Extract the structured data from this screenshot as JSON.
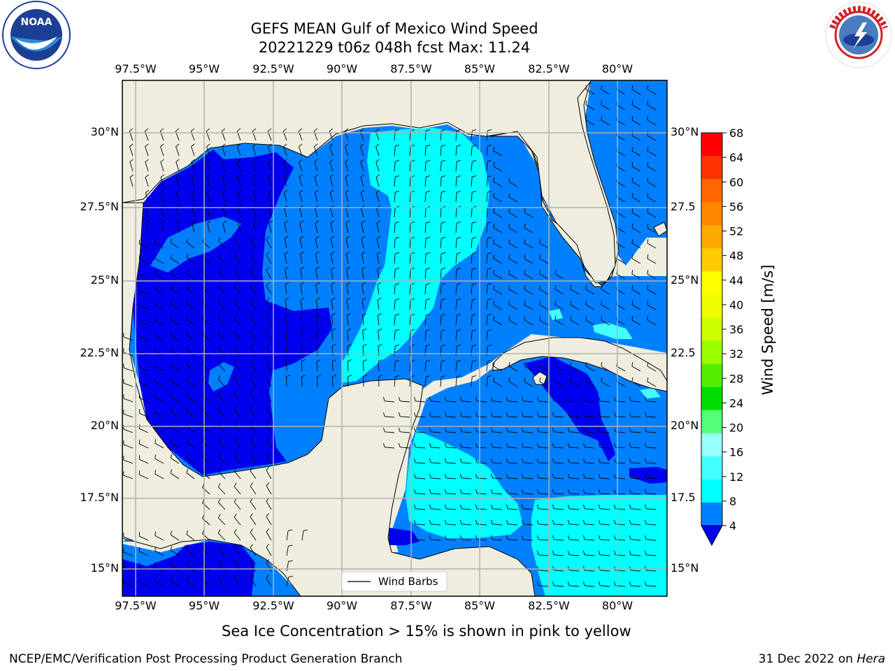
{
  "title_line1": "GEFS MEAN Gulf of Mexico Wind Speed",
  "title_line2": "20221229 t06z 048h fcst   Max: 11.24",
  "lon_labels": [
    "97.5°W",
    "95°W",
    "92.5°W",
    "90°W",
    "87.5°W",
    "85°W",
    "82.5°W",
    "80°W"
  ],
  "lat_labels_left": [
    "30°N",
    "27.5°N",
    "25°N",
    "22.5°N",
    "20°N",
    "17.5°N",
    "15°N"
  ],
  "lat_labels_right": [
    "30°N",
    "27.5",
    "25°N",
    "22.5",
    "20°N",
    "17.5",
    "15°N"
  ],
  "legend_label": "Wind Barbs",
  "colorbar": {
    "label": "Wind Speed [m/s]",
    "ticks": [
      "68",
      "64",
      "60",
      "56",
      "52",
      "48",
      "44",
      "40",
      "36",
      "32",
      "28",
      "24",
      "20",
      "16",
      "12",
      "8",
      "4"
    ],
    "colors": [
      "#ff0000",
      "#ff3300",
      "#ff6600",
      "#ff8800",
      "#ffaa00",
      "#ffcc00",
      "#ffff00",
      "#eeff00",
      "#ccff00",
      "#99ff00",
      "#55ee00",
      "#00dd00",
      "#55ff77",
      "#99ffff",
      "#44ffff",
      "#00ffff",
      "#0080ff"
    ],
    "under_color": "#0000ee"
  },
  "sea_ice_note": "Sea Ice Concentration > 15% is shown in pink to yellow",
  "footer_left": "NCEP/EMC/Verification Post Processing Product Generation Branch",
  "footer_right_date": "31 Dec 2022 on ",
  "footer_right_host": "Hera",
  "logos": {
    "noaa_text": "NOAA",
    "noaa_ring_text": "NATIONAL OCEANIC AND ATMOSPHERIC ADMINISTRATION · U.S. DEPARTMENT OF COMMERCE",
    "nws_ring_text": "NATIONAL WEATHER SERVICE"
  },
  "colors": {
    "land": "#efedde",
    "deep_blue": "#0000ee",
    "mid_blue": "#0080ff",
    "cyan": "#00ffff",
    "light_cyan": "#44ffff",
    "grid": "#b0b0b0"
  }
}
